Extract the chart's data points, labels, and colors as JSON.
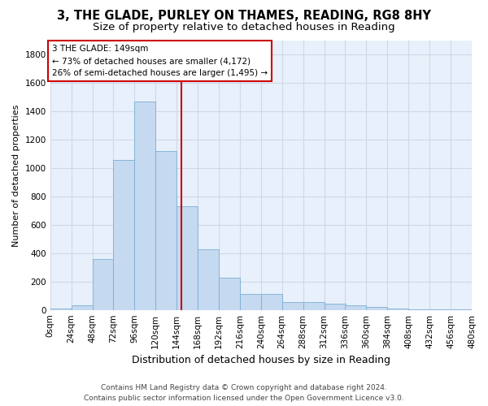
{
  "title_line1": "3, THE GLADE, PURLEY ON THAMES, READING, RG8 8HY",
  "title_line2": "Size of property relative to detached houses in Reading",
  "xlabel": "Distribution of detached houses by size in Reading",
  "ylabel": "Number of detached properties",
  "bar_color": "#c5d9f0",
  "bar_edge_color": "#7bafd4",
  "background_color": "#e8f0fb",
  "fig_background": "#ffffff",
  "grid_color": "#d0d8e8",
  "bin_edges": [
    0,
    24,
    48,
    72,
    96,
    120,
    144,
    168,
    192,
    216,
    240,
    264,
    288,
    312,
    336,
    360,
    384,
    408,
    432,
    456,
    480
  ],
  "bin_labels": [
    "0sqm",
    "24sqm",
    "48sqm",
    "72sqm",
    "96sqm",
    "120sqm",
    "144sqm",
    "168sqm",
    "192sqm",
    "216sqm",
    "240sqm",
    "264sqm",
    "288sqm",
    "312sqm",
    "336sqm",
    "360sqm",
    "384sqm",
    "408sqm",
    "432sqm",
    "456sqm",
    "480sqm"
  ],
  "values": [
    10,
    35,
    360,
    1060,
    1470,
    1120,
    730,
    430,
    225,
    110,
    110,
    55,
    55,
    45,
    30,
    20,
    10,
    5,
    3,
    2
  ],
  "ylim": [
    0,
    1900
  ],
  "yticks": [
    0,
    200,
    400,
    600,
    800,
    1000,
    1200,
    1400,
    1600,
    1800
  ],
  "vline_x": 149,
  "vline_color": "#cc0000",
  "annotation_text": "3 THE GLADE: 149sqm\n← 73% of detached houses are smaller (4,172)\n26% of semi-detached houses are larger (1,495) →",
  "annotation_box_facecolor": "#ffffff",
  "annotation_box_edgecolor": "#cc0000",
  "footer_line1": "Contains HM Land Registry data © Crown copyright and database right 2024.",
  "footer_line2": "Contains public sector information licensed under the Open Government Licence v3.0.",
  "title_fontsize": 10.5,
  "subtitle_fontsize": 9.5,
  "xlabel_fontsize": 9,
  "ylabel_fontsize": 8,
  "tick_fontsize": 7.5,
  "annotation_fontsize": 7.5,
  "footer_fontsize": 6.5
}
